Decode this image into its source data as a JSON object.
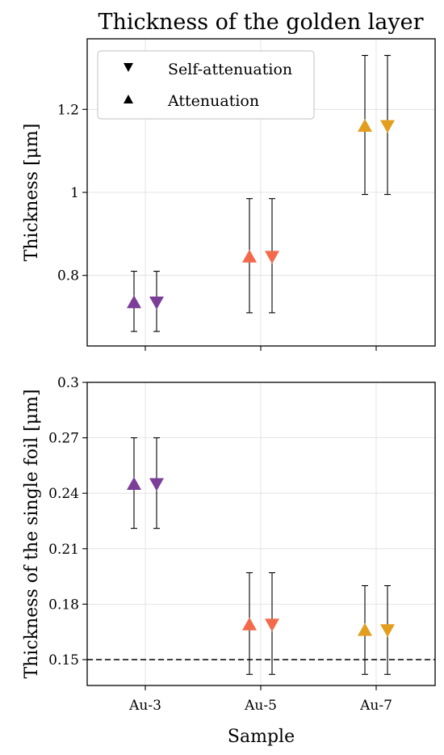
{
  "figure": {
    "title": "Thickness of the golden layer",
    "legend": {
      "placement": "top-left",
      "entries": [
        {
          "marker": "triangle-down",
          "label": "Self-attenuation"
        },
        {
          "marker": "triangle-up",
          "label": "Attenuation"
        }
      ]
    }
  },
  "chart_data": [
    {
      "type": "scatter",
      "error_bars": true,
      "categories": [
        "Au-3",
        "Au-5",
        "Au-7"
      ],
      "category_colors": [
        "#7b3f98",
        "#f26a4b",
        "#e39d1f"
      ],
      "xlabel": "",
      "ylabel": "Thickness [μm]",
      "ylim": [
        0.63,
        1.37
      ],
      "yticks": [
        0.8,
        1.0,
        1.2
      ],
      "ytick_labels": [
        "0.8",
        "1",
        "1.2"
      ],
      "grid": true,
      "series": [
        {
          "name": "Attenuation",
          "marker": "triangle-up",
          "values": [
            0.735,
            0.845,
            1.16
          ],
          "err_low": [
            0.665,
            0.71,
            0.995
          ],
          "err_high": [
            0.81,
            0.985,
            1.33
          ]
        },
        {
          "name": "Self-attenuation",
          "marker": "triangle-down",
          "values": [
            0.735,
            0.845,
            1.16
          ],
          "err_low": [
            0.665,
            0.71,
            0.995
          ],
          "err_high": [
            0.81,
            0.985,
            1.33
          ]
        }
      ]
    },
    {
      "type": "scatter",
      "error_bars": true,
      "categories": [
        "Au-3",
        "Au-5",
        "Au-7"
      ],
      "category_colors": [
        "#7b3f98",
        "#f26a4b",
        "#e39d1f"
      ],
      "xlabel": "Sample",
      "ylabel": "Thickness of the single foil [μm]",
      "ylim": [
        0.136,
        0.3
      ],
      "yticks": [
        0.15,
        0.18,
        0.21,
        0.24,
        0.27,
        0.3
      ],
      "ytick_labels": [
        "0.15",
        "0.18",
        "0.21",
        "0.24",
        "0.27",
        "0.3"
      ],
      "grid": true,
      "reference_line": {
        "y": 0.15,
        "style": "dashed"
      },
      "series": [
        {
          "name": "Attenuation",
          "marker": "triangle-up",
          "values": [
            0.245,
            0.169,
            0.166
          ],
          "err_low": [
            0.221,
            0.142,
            0.142
          ],
          "err_high": [
            0.27,
            0.197,
            0.19
          ]
        },
        {
          "name": "Self-attenuation",
          "marker": "triangle-down",
          "values": [
            0.245,
            0.169,
            0.166
          ],
          "err_low": [
            0.221,
            0.142,
            0.142
          ],
          "err_high": [
            0.27,
            0.197,
            0.19
          ]
        }
      ]
    }
  ]
}
